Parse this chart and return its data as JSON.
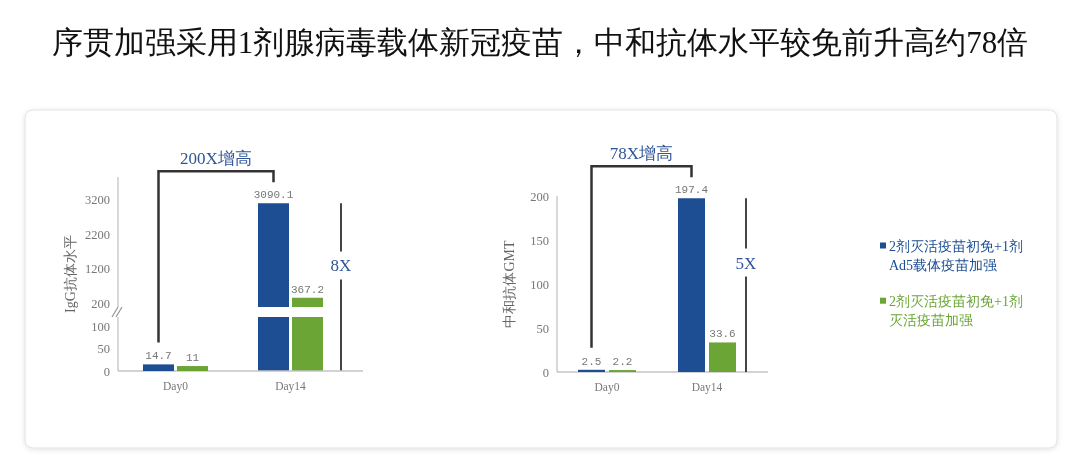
{
  "chart_data": [
    {
      "type": "bar",
      "title": "序贯加强采用1剂腺病毒载体新冠疫苗，中和抗体水平较免前升高约78倍",
      "categories": [
        "Day0",
        "Day14"
      ],
      "ylabel": "IgG抗体水平",
      "ylim": [
        100,
        3850
      ],
      "yticks": [
        200,
        1200,
        2200,
        3200
      ],
      "tick_labels": "y",
      "series": [
        {
          "color": "#1d4e94",
          "values": [
            null,
            3090.1
          ],
          "value_labels": [
            null,
            "3090.1"
          ]
        },
        {
          "color": "#6aa536",
          "values": [
            null,
            367.2
          ],
          "value_labels": [
            null,
            "367.2"
          ]
        }
      ],
      "annotations": [
        "200X增高",
        "8X"
      ]
    },
    {
      "type": "bar",
      "categories": [
        "Day0",
        "Day14"
      ],
      "ylim": [
        0,
        120
      ],
      "yticks": [
        0,
        50,
        100
      ],
      "series": [
        {
          "color": "#1d4e94",
          "values": [
            14.7,
            null
          ],
          "value_labels": [
            "14.7",
            null
          ]
        },
        {
          "color": "#6aa536",
          "values": [
            11,
            null
          ],
          "value_labels": [
            "11",
            null
          ]
        }
      ]
    },
    {
      "type": "bar",
      "categories": [
        "Day0",
        "Day14"
      ],
      "ylabel": "中和抗体GMT",
      "ylim": [
        0,
        200
      ],
      "yticks": [
        0,
        50,
        100,
        150,
        200
      ],
      "data_labels": true,
      "legend": "right",
      "series": [
        {
          "name": "2剂灭活疫苗初免+1剂Ad5载体疫苗加强",
          "color": "#1d4e94",
          "values": [
            2.5,
            197.4
          ]
        },
        {
          "name": "2剂灭活疫苗初免+1剂灭活疫苗加强",
          "color": "#6aa536",
          "values": [
            2.2,
            33.6
          ]
        }
      ],
      "annotations": [
        "78X增高",
        "5X"
      ]
    }
  ]
}
